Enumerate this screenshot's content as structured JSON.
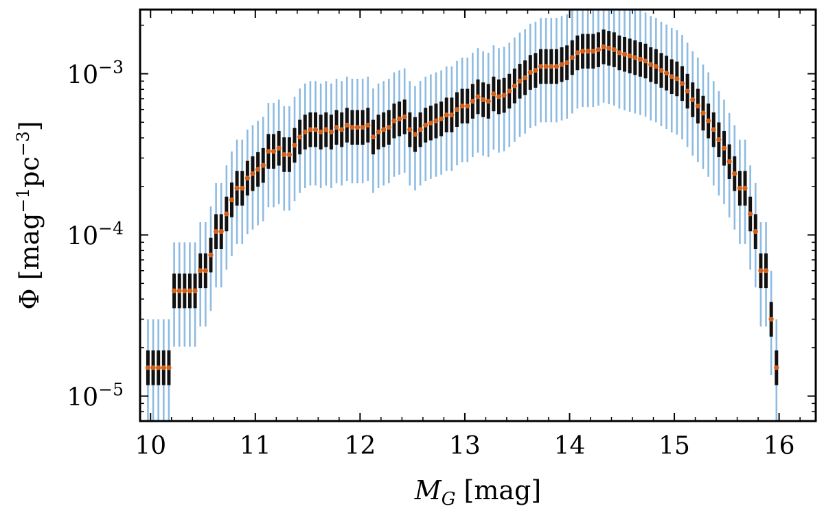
{
  "chart_data": {
    "type": "scatter",
    "title": "",
    "xlabel": "M_G [mag]",
    "ylabel": "Φ [mag⁻¹pc⁻³]",
    "xlim": [
      9.9,
      16.35
    ],
    "ylim": [
      7e-06,
      0.0025
    ],
    "yscale": "log",
    "grid": false,
    "x_ticks": [
      {
        "value": 10,
        "label": "10"
      },
      {
        "value": 11,
        "label": "11"
      },
      {
        "value": 12,
        "label": "12"
      },
      {
        "value": 13,
        "label": "13"
      },
      {
        "value": 14,
        "label": "14"
      },
      {
        "value": 15,
        "label": "15"
      },
      {
        "value": 16,
        "label": "16"
      }
    ],
    "y_ticks": [
      {
        "value": 1e-05,
        "base": "10",
        "exp": "−5"
      },
      {
        "value": 0.0001,
        "base": "10",
        "exp": "−4"
      },
      {
        "value": 0.001,
        "base": "10",
        "exp": "−3"
      }
    ],
    "colors": {
      "points": "#d2601a",
      "inner_error": "#111111",
      "outer_error": "#8dbbe1",
      "axes": "#000000"
    },
    "series": [
      {
        "name": "Phi",
        "x_start": 9.975,
        "x_step": 0.05,
        "values": [
          1.5e-05,
          1.5e-05,
          1.5e-05,
          1.5e-05,
          1.5e-05,
          4.5e-05,
          4.5e-05,
          4.5e-05,
          4.5e-05,
          4.5e-05,
          6e-05,
          6e-05,
          7.5e-05,
          0.000105,
          0.000105,
          0.000135,
          0.000165,
          0.000195,
          0.000195,
          0.000225,
          0.00024,
          0.000255,
          0.00027,
          0.00033,
          0.00033,
          0.000345,
          0.000315,
          0.000315,
          0.00036,
          0.000405,
          0.000435,
          0.00045,
          0.00045,
          0.000435,
          0.00045,
          0.000435,
          0.000465,
          0.00045,
          0.00048,
          0.000465,
          0.000465,
          0.000465,
          0.00048,
          0.000405,
          0.000435,
          0.00045,
          0.000465,
          0.00051,
          0.000525,
          0.00054,
          0.00045,
          0.00042,
          0.00045,
          0.00048,
          0.000495,
          0.00051,
          0.000525,
          0.000555,
          0.000555,
          0.0006,
          0.00063,
          0.00063,
          0.000675,
          0.00072,
          0.00069,
          0.000675,
          0.00075,
          0.00072,
          0.000735,
          0.00078,
          0.00084,
          0.0009,
          0.000945,
          0.00102,
          0.00105,
          0.00111,
          0.00111,
          0.00111,
          0.00111,
          0.00114,
          0.00117,
          0.00126,
          0.00135,
          0.00138,
          0.00138,
          0.00138,
          0.00141,
          0.00147,
          0.00144,
          0.00141,
          0.00135,
          0.00132,
          0.00129,
          0.00126,
          0.00123,
          0.0012,
          0.00114,
          0.00111,
          0.00105,
          0.00101,
          0.00096,
          0.00093,
          0.00087,
          0.00078,
          0.00069,
          0.00063,
          0.00057,
          0.00051,
          0.00045,
          0.00039,
          0.000345,
          0.000285,
          0.00024,
          0.000195,
          0.000195,
          0.000135,
          0.000105,
          6e-05,
          6e-05,
          3e-05,
          1.5e-05
        ]
      }
    ]
  }
}
